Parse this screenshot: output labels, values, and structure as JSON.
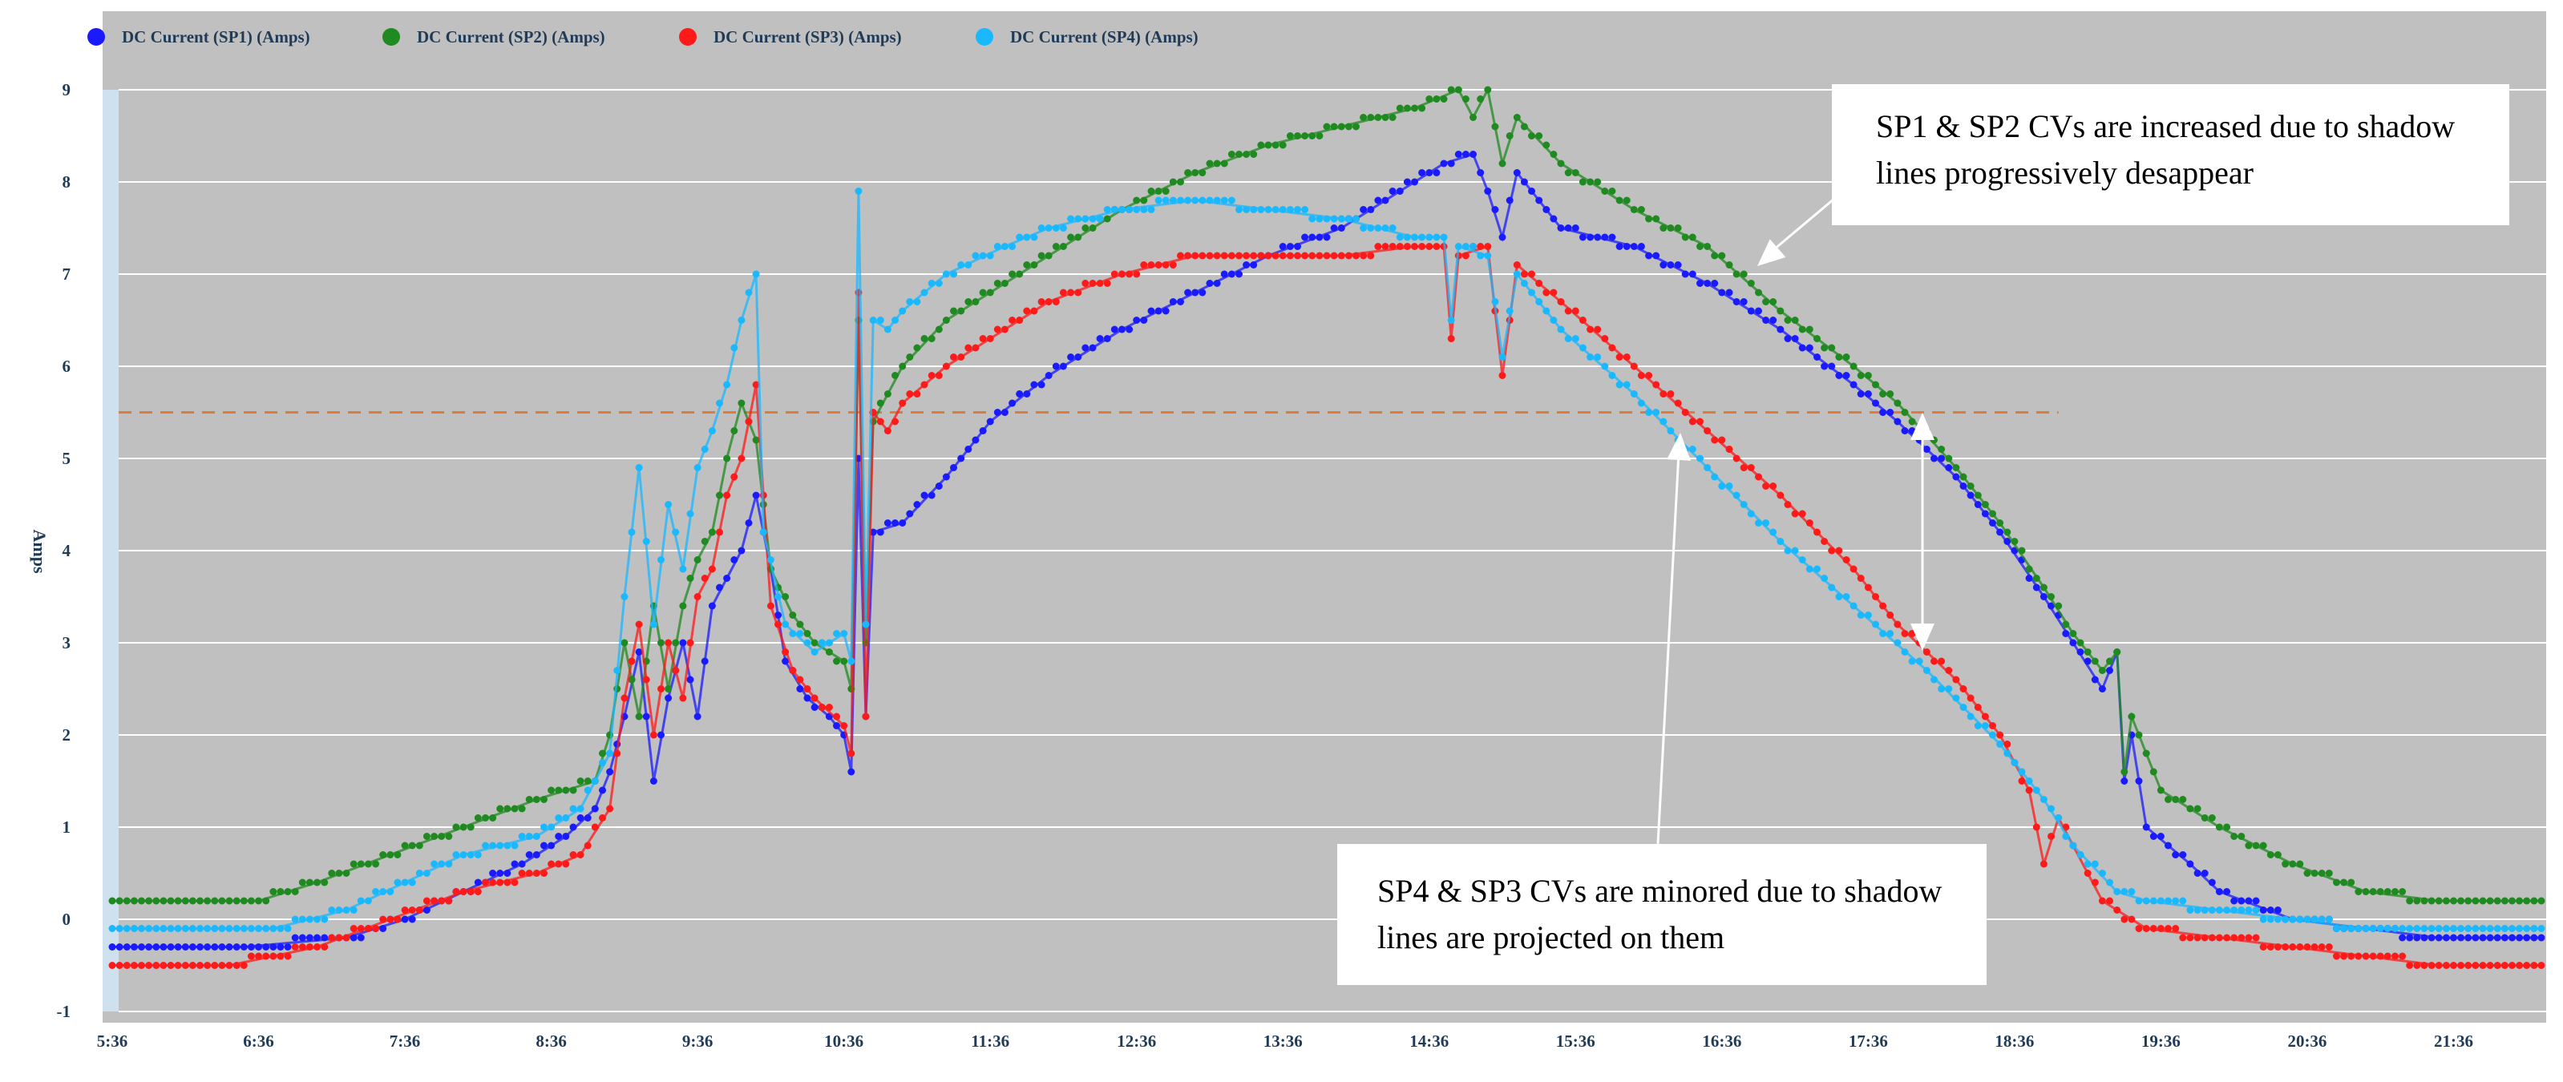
{
  "chart_data": {
    "type": "line",
    "ylabel": "Amps",
    "ylim": [
      -1,
      9
    ],
    "yticks": [
      "-1",
      "0",
      "1",
      "2",
      "3",
      "4",
      "5",
      "6",
      "7",
      "8",
      "9"
    ],
    "xticks": [
      "5:36",
      "6:36",
      "7:36",
      "8:36",
      "9:36",
      "10:36",
      "11:36",
      "12:36",
      "13:36",
      "14:36",
      "15:36",
      "16:36",
      "17:36",
      "18:36",
      "19:36",
      "20:36",
      "21:36"
    ],
    "xlim_hours": [
      5.6,
      22.2
    ],
    "grid": true,
    "legend_position": "top-left",
    "reference_line": {
      "value": 5.5,
      "x_end_hours": 18.9,
      "color": "#e07b39"
    },
    "series": [
      {
        "name": "DC Current (SP1) (Amps)",
        "color": "#1a1aff",
        "points": [
          [
            5.6,
            -0.3
          ],
          [
            6.5,
            -0.3
          ],
          [
            7.2,
            -0.2
          ],
          [
            7.6,
            0.0
          ],
          [
            8.0,
            0.3
          ],
          [
            8.4,
            0.6
          ],
          [
            8.7,
            0.9
          ],
          [
            8.9,
            1.2
          ],
          [
            9.0,
            1.6
          ],
          [
            9.1,
            2.2
          ],
          [
            9.2,
            2.9
          ],
          [
            9.3,
            1.5
          ],
          [
            9.4,
            2.4
          ],
          [
            9.5,
            3.0
          ],
          [
            9.6,
            2.2
          ],
          [
            9.7,
            3.4
          ],
          [
            9.8,
            3.7
          ],
          [
            9.9,
            4.0
          ],
          [
            10.0,
            4.6
          ],
          [
            10.1,
            3.8
          ],
          [
            10.2,
            2.8
          ],
          [
            10.35,
            2.4
          ],
          [
            10.5,
            2.2
          ],
          [
            10.6,
            2.0
          ],
          [
            10.65,
            1.6
          ],
          [
            10.7,
            5.0
          ],
          [
            10.75,
            2.2
          ],
          [
            10.8,
            4.2
          ],
          [
            11.0,
            4.3
          ],
          [
            11.3,
            4.8
          ],
          [
            11.6,
            5.4
          ],
          [
            12.0,
            5.9
          ],
          [
            12.5,
            6.4
          ],
          [
            13.0,
            6.8
          ],
          [
            13.5,
            7.2
          ],
          [
            14.0,
            7.5
          ],
          [
            14.4,
            7.9
          ],
          [
            14.7,
            8.2
          ],
          [
            14.9,
            8.3
          ],
          [
            15.0,
            7.9
          ],
          [
            15.1,
            7.4
          ],
          [
            15.2,
            8.1
          ],
          [
            15.5,
            7.5
          ],
          [
            16.0,
            7.3
          ],
          [
            16.5,
            6.9
          ],
          [
            17.0,
            6.4
          ],
          [
            17.5,
            5.8
          ],
          [
            17.8,
            5.4
          ],
          [
            18.2,
            4.8
          ],
          [
            18.5,
            4.2
          ],
          [
            18.8,
            3.5
          ],
          [
            19.0,
            3.0
          ],
          [
            19.2,
            2.5
          ],
          [
            19.3,
            2.9
          ],
          [
            19.35,
            1.5
          ],
          [
            19.4,
            2.0
          ],
          [
            19.5,
            1.0
          ],
          [
            19.8,
            0.6
          ],
          [
            20.0,
            0.3
          ],
          [
            20.5,
            0.0
          ],
          [
            21.0,
            -0.1
          ],
          [
            21.5,
            -0.2
          ],
          [
            22.2,
            -0.2
          ]
        ]
      },
      {
        "name": "DC Current (SP2) (Amps)",
        "color": "#1f8a1f",
        "points": [
          [
            5.6,
            0.2
          ],
          [
            6.6,
            0.2
          ],
          [
            7.0,
            0.4
          ],
          [
            7.5,
            0.7
          ],
          [
            8.0,
            1.0
          ],
          [
            8.5,
            1.3
          ],
          [
            8.9,
            1.5
          ],
          [
            9.0,
            2.0
          ],
          [
            9.1,
            3.0
          ],
          [
            9.2,
            2.2
          ],
          [
            9.3,
            3.4
          ],
          [
            9.4,
            2.5
          ],
          [
            9.5,
            3.4
          ],
          [
            9.6,
            3.9
          ],
          [
            9.7,
            4.2
          ],
          [
            9.8,
            5.0
          ],
          [
            9.9,
            5.6
          ],
          [
            10.0,
            5.2
          ],
          [
            10.1,
            3.8
          ],
          [
            10.25,
            3.3
          ],
          [
            10.4,
            3.0
          ],
          [
            10.6,
            2.8
          ],
          [
            10.65,
            2.5
          ],
          [
            10.7,
            6.5
          ],
          [
            10.75,
            3.0
          ],
          [
            10.8,
            5.4
          ],
          [
            11.0,
            6.0
          ],
          [
            11.3,
            6.5
          ],
          [
            11.7,
            6.9
          ],
          [
            12.0,
            7.2
          ],
          [
            12.5,
            7.7
          ],
          [
            13.0,
            8.1
          ],
          [
            13.5,
            8.4
          ],
          [
            14.0,
            8.6
          ],
          [
            14.5,
            8.8
          ],
          [
            14.8,
            9.0
          ],
          [
            14.9,
            8.7
          ],
          [
            15.0,
            9.0
          ],
          [
            15.1,
            8.2
          ],
          [
            15.2,
            8.7
          ],
          [
            15.5,
            8.2
          ],
          [
            16.0,
            7.7
          ],
          [
            16.5,
            7.3
          ],
          [
            17.0,
            6.6
          ],
          [
            17.5,
            6.0
          ],
          [
            17.8,
            5.6
          ],
          [
            18.2,
            4.9
          ],
          [
            18.5,
            4.3
          ],
          [
            18.8,
            3.6
          ],
          [
            19.0,
            3.1
          ],
          [
            19.2,
            2.7
          ],
          [
            19.3,
            2.9
          ],
          [
            19.35,
            1.6
          ],
          [
            19.4,
            2.2
          ],
          [
            19.6,
            1.4
          ],
          [
            20.0,
            1.0
          ],
          [
            20.5,
            0.6
          ],
          [
            21.0,
            0.3
          ],
          [
            21.5,
            0.2
          ],
          [
            22.2,
            0.2
          ]
        ]
      },
      {
        "name": "DC Current (SP3) (Amps)",
        "color": "#ff1a1a",
        "points": [
          [
            5.6,
            -0.5
          ],
          [
            6.4,
            -0.5
          ],
          [
            7.0,
            -0.3
          ],
          [
            7.5,
            0.0
          ],
          [
            8.0,
            0.3
          ],
          [
            8.5,
            0.5
          ],
          [
            8.8,
            0.7
          ],
          [
            9.0,
            1.2
          ],
          [
            9.1,
            2.4
          ],
          [
            9.2,
            3.2
          ],
          [
            9.3,
            2.0
          ],
          [
            9.4,
            3.0
          ],
          [
            9.5,
            2.4
          ],
          [
            9.6,
            3.5
          ],
          [
            9.7,
            3.8
          ],
          [
            9.8,
            4.6
          ],
          [
            9.9,
            5.0
          ],
          [
            10.0,
            5.8
          ],
          [
            10.1,
            3.4
          ],
          [
            10.25,
            2.7
          ],
          [
            10.4,
            2.4
          ],
          [
            10.6,
            2.1
          ],
          [
            10.65,
            1.8
          ],
          [
            10.7,
            6.8
          ],
          [
            10.75,
            2.2
          ],
          [
            10.8,
            5.5
          ],
          [
            10.9,
            5.3
          ],
          [
            11.0,
            5.6
          ],
          [
            11.3,
            6.0
          ],
          [
            11.7,
            6.4
          ],
          [
            12.0,
            6.7
          ],
          [
            12.5,
            7.0
          ],
          [
            13.0,
            7.2
          ],
          [
            13.5,
            7.2
          ],
          [
            14.0,
            7.2
          ],
          [
            14.5,
            7.3
          ],
          [
            14.7,
            7.3
          ],
          [
            14.75,
            6.3
          ],
          [
            14.8,
            7.2
          ],
          [
            15.0,
            7.3
          ],
          [
            15.1,
            5.9
          ],
          [
            15.2,
            7.1
          ],
          [
            15.5,
            6.7
          ],
          [
            16.0,
            6.0
          ],
          [
            16.5,
            5.3
          ],
          [
            17.0,
            4.6
          ],
          [
            17.5,
            3.8
          ],
          [
            17.8,
            3.2
          ],
          [
            18.2,
            2.6
          ],
          [
            18.5,
            2.0
          ],
          [
            18.7,
            1.4
          ],
          [
            18.8,
            0.6
          ],
          [
            18.9,
            1.1
          ],
          [
            19.0,
            0.8
          ],
          [
            19.2,
            0.2
          ],
          [
            19.5,
            -0.1
          ],
          [
            20.0,
            -0.2
          ],
          [
            20.5,
            -0.3
          ],
          [
            21.0,
            -0.4
          ],
          [
            21.5,
            -0.5
          ],
          [
            22.2,
            -0.5
          ]
        ]
      },
      {
        "name": "DC Current (SP4) (Amps)",
        "color": "#1ab8ff",
        "points": [
          [
            5.6,
            -0.1
          ],
          [
            6.7,
            -0.1
          ],
          [
            7.2,
            0.1
          ],
          [
            7.6,
            0.4
          ],
          [
            8.0,
            0.7
          ],
          [
            8.5,
            0.9
          ],
          [
            8.8,
            1.2
          ],
          [
            9.0,
            1.8
          ],
          [
            9.1,
            3.5
          ],
          [
            9.2,
            4.9
          ],
          [
            9.3,
            3.2
          ],
          [
            9.4,
            4.5
          ],
          [
            9.5,
            3.8
          ],
          [
            9.6,
            4.9
          ],
          [
            9.7,
            5.3
          ],
          [
            9.8,
            5.8
          ],
          [
            9.9,
            6.5
          ],
          [
            10.0,
            7.0
          ],
          [
            10.05,
            4.2
          ],
          [
            10.2,
            3.2
          ],
          [
            10.4,
            2.9
          ],
          [
            10.6,
            3.1
          ],
          [
            10.65,
            2.8
          ],
          [
            10.7,
            7.9
          ],
          [
            10.75,
            3.2
          ],
          [
            10.8,
            6.5
          ],
          [
            10.9,
            6.4
          ],
          [
            11.0,
            6.6
          ],
          [
            11.3,
            7.0
          ],
          [
            11.7,
            7.3
          ],
          [
            12.0,
            7.5
          ],
          [
            12.5,
            7.7
          ],
          [
            13.0,
            7.8
          ],
          [
            13.5,
            7.7
          ],
          [
            14.0,
            7.6
          ],
          [
            14.5,
            7.4
          ],
          [
            14.7,
            7.4
          ],
          [
            14.75,
            6.5
          ],
          [
            14.8,
            7.3
          ],
          [
            15.0,
            7.2
          ],
          [
            15.1,
            6.1
          ],
          [
            15.2,
            7.0
          ],
          [
            15.5,
            6.4
          ],
          [
            16.0,
            5.7
          ],
          [
            16.5,
            4.9
          ],
          [
            17.0,
            4.1
          ],
          [
            17.5,
            3.4
          ],
          [
            18.0,
            2.7
          ],
          [
            18.5,
            1.9
          ],
          [
            18.8,
            1.3
          ],
          [
            19.0,
            0.8
          ],
          [
            19.3,
            0.3
          ],
          [
            19.5,
            0.2
          ],
          [
            20.0,
            0.1
          ],
          [
            20.5,
            0.0
          ],
          [
            21.0,
            -0.1
          ],
          [
            21.5,
            -0.1
          ],
          [
            22.2,
            -0.1
          ]
        ]
      }
    ],
    "annotations": [
      {
        "text": "SP1 & SP2 CVs are increased due to shadow lines progressively desappear"
      },
      {
        "text": "SP4 & SP3 CVs are minored due to shadow lines are projected on them"
      }
    ]
  }
}
